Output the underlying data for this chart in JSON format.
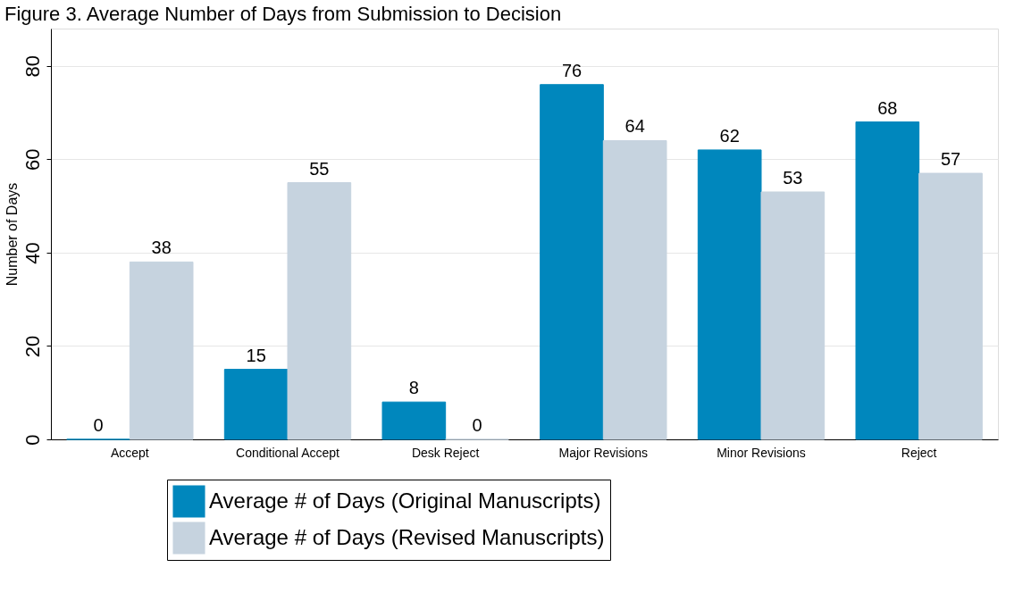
{
  "chart_data": {
    "type": "bar",
    "title": "Figure 3. Average Number of Days from Submission to Decision",
    "categories": [
      "Accept",
      "Conditional Accept",
      "Desk Reject",
      "Major Revisions",
      "Minor Revisions",
      "Reject"
    ],
    "series": [
      {
        "name": "Average # of Days (Original Manuscripts)",
        "color": "#0087bd",
        "values": [
          0,
          15,
          8,
          76,
          62,
          68
        ]
      },
      {
        "name": "Average # of Days (Revised Manuscripts)",
        "color": "#c6d3df",
        "values": [
          38,
          55,
          0,
          64,
          53,
          57
        ]
      }
    ],
    "ylabel": "Number of Days",
    "ylim": [
      0,
      88
    ],
    "yticks": [
      0,
      20,
      40,
      60,
      80
    ],
    "grid": "y",
    "legend": "bottom",
    "data_labels": true
  }
}
